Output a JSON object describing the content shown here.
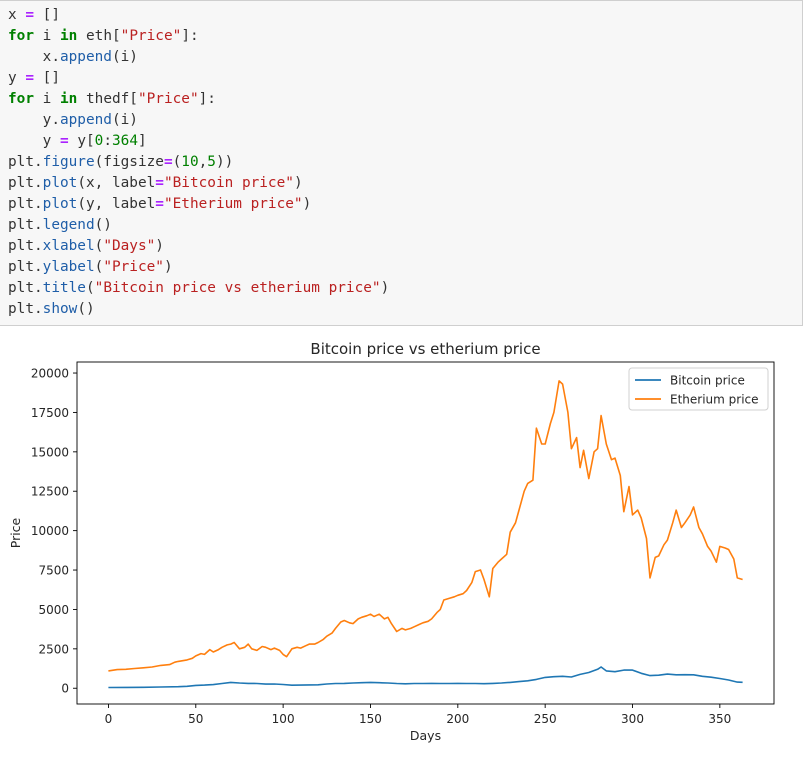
{
  "code_cell": {
    "lines": [
      [
        {
          "t": "x ",
          "c": ""
        },
        {
          "t": "=",
          "c": "op"
        },
        {
          "t": " []",
          "c": ""
        }
      ],
      [
        {
          "t": "for",
          "c": "kw"
        },
        {
          "t": " i ",
          "c": ""
        },
        {
          "t": "in",
          "c": "kw"
        },
        {
          "t": " eth[",
          "c": ""
        },
        {
          "t": "\"Price\"",
          "c": "str"
        },
        {
          "t": "]:",
          "c": ""
        }
      ],
      [
        {
          "t": "    x.",
          "c": ""
        },
        {
          "t": "append",
          "c": "fn"
        },
        {
          "t": "(i)",
          "c": ""
        }
      ],
      [
        {
          "t": "y ",
          "c": ""
        },
        {
          "t": "=",
          "c": "op"
        },
        {
          "t": " []",
          "c": ""
        }
      ],
      [
        {
          "t": "for",
          "c": "kw"
        },
        {
          "t": " i ",
          "c": ""
        },
        {
          "t": "in",
          "c": "kw"
        },
        {
          "t": " thedf[",
          "c": ""
        },
        {
          "t": "\"Price\"",
          "c": "str"
        },
        {
          "t": "]:",
          "c": ""
        }
      ],
      [
        {
          "t": "    y.",
          "c": ""
        },
        {
          "t": "append",
          "c": "fn"
        },
        {
          "t": "(i)",
          "c": ""
        }
      ],
      [
        {
          "t": "    y ",
          "c": ""
        },
        {
          "t": "=",
          "c": "op"
        },
        {
          "t": " y[",
          "c": ""
        },
        {
          "t": "0",
          "c": "num"
        },
        {
          "t": ":",
          "c": ""
        },
        {
          "t": "364",
          "c": "num"
        },
        {
          "t": "]",
          "c": ""
        }
      ],
      [
        {
          "t": "plt.",
          "c": ""
        },
        {
          "t": "figure",
          "c": "fn"
        },
        {
          "t": "(figsize",
          "c": ""
        },
        {
          "t": "=",
          "c": "op"
        },
        {
          "t": "(",
          "c": ""
        },
        {
          "t": "10",
          "c": "num"
        },
        {
          "t": ",",
          "c": ""
        },
        {
          "t": "5",
          "c": "num"
        },
        {
          "t": "))",
          "c": ""
        }
      ],
      [
        {
          "t": "plt.",
          "c": ""
        },
        {
          "t": "plot",
          "c": "fn"
        },
        {
          "t": "(x, label",
          "c": ""
        },
        {
          "t": "=",
          "c": "op"
        },
        {
          "t": "\"Bitcoin price\"",
          "c": "str"
        },
        {
          "t": ")",
          "c": ""
        }
      ],
      [
        {
          "t": "plt.",
          "c": ""
        },
        {
          "t": "plot",
          "c": "fn"
        },
        {
          "t": "(y, label",
          "c": ""
        },
        {
          "t": "=",
          "c": "op"
        },
        {
          "t": "\"Etherium price\"",
          "c": "str"
        },
        {
          "t": ")",
          "c": ""
        }
      ],
      [
        {
          "t": "plt.",
          "c": ""
        },
        {
          "t": "legend",
          "c": "fn"
        },
        {
          "t": "()",
          "c": ""
        }
      ],
      [
        {
          "t": "plt.",
          "c": ""
        },
        {
          "t": "xlabel",
          "c": "fn"
        },
        {
          "t": "(",
          "c": ""
        },
        {
          "t": "\"Days\"",
          "c": "str"
        },
        {
          "t": ")",
          "c": ""
        }
      ],
      [
        {
          "t": "plt.",
          "c": ""
        },
        {
          "t": "ylabel",
          "c": "fn"
        },
        {
          "t": "(",
          "c": ""
        },
        {
          "t": "\"Price\"",
          "c": "str"
        },
        {
          "t": ")",
          "c": ""
        }
      ],
      [
        {
          "t": "plt.",
          "c": ""
        },
        {
          "t": "title",
          "c": "fn"
        },
        {
          "t": "(",
          "c": ""
        },
        {
          "t": "\"Bitcoin price vs etherium price\"",
          "c": "str"
        },
        {
          "t": ")",
          "c": ""
        }
      ],
      [
        {
          "t": "plt.",
          "c": ""
        },
        {
          "t": "show",
          "c": "fn"
        },
        {
          "t": "()",
          "c": ""
        }
      ]
    ]
  },
  "chart_data": {
    "type": "line",
    "title": "Bitcoin price vs etherium price",
    "xlabel": "Days",
    "ylabel": "Price",
    "xlim": [
      -18,
      381
    ],
    "ylim": [
      -1000,
      20700
    ],
    "xticks": [
      0,
      50,
      100,
      150,
      200,
      250,
      300,
      350
    ],
    "yticks": [
      0,
      2500,
      5000,
      7500,
      10000,
      12500,
      15000,
      17500,
      20000
    ],
    "legend_position": "top-right",
    "grid": false,
    "series": [
      {
        "name": "Bitcoin price",
        "color": "#1f77b4",
        "points": [
          [
            0,
            50
          ],
          [
            10,
            55
          ],
          [
            20,
            60
          ],
          [
            30,
            80
          ],
          [
            40,
            95
          ],
          [
            45,
            120
          ],
          [
            50,
            180
          ],
          [
            55,
            200
          ],
          [
            60,
            230
          ],
          [
            65,
            300
          ],
          [
            70,
            370
          ],
          [
            75,
            330
          ],
          [
            80,
            310
          ],
          [
            85,
            300
          ],
          [
            90,
            260
          ],
          [
            95,
            270
          ],
          [
            100,
            240
          ],
          [
            105,
            190
          ],
          [
            110,
            200
          ],
          [
            115,
            210
          ],
          [
            120,
            220
          ],
          [
            125,
            270
          ],
          [
            130,
            300
          ],
          [
            135,
            310
          ],
          [
            140,
            330
          ],
          [
            145,
            350
          ],
          [
            150,
            370
          ],
          [
            155,
            350
          ],
          [
            160,
            330
          ],
          [
            165,
            300
          ],
          [
            170,
            280
          ],
          [
            175,
            300
          ],
          [
            180,
            300
          ],
          [
            185,
            310
          ],
          [
            190,
            300
          ],
          [
            195,
            300
          ],
          [
            200,
            310
          ],
          [
            205,
            300
          ],
          [
            210,
            300
          ],
          [
            215,
            290
          ],
          [
            220,
            310
          ],
          [
            225,
            330
          ],
          [
            230,
            370
          ],
          [
            235,
            420
          ],
          [
            240,
            470
          ],
          [
            245,
            560
          ],
          [
            250,
            690
          ],
          [
            255,
            730
          ],
          [
            260,
            760
          ],
          [
            265,
            710
          ],
          [
            270,
            880
          ],
          [
            275,
            1000
          ],
          [
            280,
            1200
          ],
          [
            282,
            1350
          ],
          [
            285,
            1100
          ],
          [
            290,
            1050
          ],
          [
            295,
            1150
          ],
          [
            300,
            1150
          ],
          [
            305,
            950
          ],
          [
            310,
            800
          ],
          [
            315,
            830
          ],
          [
            320,
            900
          ],
          [
            325,
            850
          ],
          [
            330,
            860
          ],
          [
            335,
            850
          ],
          [
            340,
            760
          ],
          [
            345,
            700
          ],
          [
            350,
            620
          ],
          [
            355,
            520
          ],
          [
            360,
            390
          ],
          [
            363,
            380
          ]
        ]
      },
      {
        "name": "Etherium price",
        "color": "#ff7f0e",
        "points": [
          [
            0,
            1100
          ],
          [
            5,
            1180
          ],
          [
            10,
            1200
          ],
          [
            15,
            1250
          ],
          [
            20,
            1300
          ],
          [
            25,
            1350
          ],
          [
            30,
            1450
          ],
          [
            35,
            1500
          ],
          [
            38,
            1650
          ],
          [
            40,
            1700
          ],
          [
            45,
            1800
          ],
          [
            48,
            1900
          ],
          [
            50,
            2050
          ],
          [
            53,
            2200
          ],
          [
            55,
            2150
          ],
          [
            58,
            2450
          ],
          [
            60,
            2300
          ],
          [
            63,
            2450
          ],
          [
            65,
            2600
          ],
          [
            68,
            2750
          ],
          [
            70,
            2800
          ],
          [
            72,
            2900
          ],
          [
            75,
            2500
          ],
          [
            78,
            2600
          ],
          [
            80,
            2800
          ],
          [
            82,
            2500
          ],
          [
            85,
            2400
          ],
          [
            88,
            2650
          ],
          [
            90,
            2600
          ],
          [
            93,
            2450
          ],
          [
            95,
            2550
          ],
          [
            98,
            2400
          ],
          [
            100,
            2150
          ],
          [
            102,
            2000
          ],
          [
            105,
            2500
          ],
          [
            108,
            2600
          ],
          [
            110,
            2550
          ],
          [
            113,
            2700
          ],
          [
            115,
            2800
          ],
          [
            118,
            2800
          ],
          [
            120,
            2900
          ],
          [
            123,
            3100
          ],
          [
            125,
            3300
          ],
          [
            128,
            3500
          ],
          [
            130,
            3800
          ],
          [
            133,
            4200
          ],
          [
            135,
            4300
          ],
          [
            138,
            4150
          ],
          [
            140,
            4100
          ],
          [
            143,
            4400
          ],
          [
            145,
            4500
          ],
          [
            148,
            4600
          ],
          [
            150,
            4700
          ],
          [
            152,
            4550
          ],
          [
            155,
            4700
          ],
          [
            158,
            4400
          ],
          [
            160,
            4500
          ],
          [
            162,
            4100
          ],
          [
            165,
            3600
          ],
          [
            168,
            3800
          ],
          [
            170,
            3700
          ],
          [
            173,
            3800
          ],
          [
            175,
            3900
          ],
          [
            178,
            4050
          ],
          [
            180,
            4150
          ],
          [
            183,
            4250
          ],
          [
            185,
            4400
          ],
          [
            188,
            4800
          ],
          [
            190,
            5000
          ],
          [
            192,
            5600
          ],
          [
            195,
            5700
          ],
          [
            198,
            5800
          ],
          [
            200,
            5900
          ],
          [
            203,
            6000
          ],
          [
            205,
            6200
          ],
          [
            208,
            6700
          ],
          [
            210,
            7400
          ],
          [
            213,
            7500
          ],
          [
            215,
            6900
          ],
          [
            218,
            5800
          ],
          [
            220,
            7600
          ],
          [
            223,
            8000
          ],
          [
            225,
            8200
          ],
          [
            228,
            8500
          ],
          [
            230,
            9900
          ],
          [
            233,
            10500
          ],
          [
            235,
            11300
          ],
          [
            238,
            12500
          ],
          [
            240,
            13000
          ],
          [
            243,
            13200
          ],
          [
            245,
            16500
          ],
          [
            248,
            15500
          ],
          [
            250,
            15500
          ],
          [
            253,
            16800
          ],
          [
            255,
            17500
          ],
          [
            258,
            19500
          ],
          [
            260,
            19300
          ],
          [
            263,
            17500
          ],
          [
            265,
            15200
          ],
          [
            268,
            15900
          ],
          [
            270,
            14000
          ],
          [
            272,
            15100
          ],
          [
            275,
            13300
          ],
          [
            278,
            15000
          ],
          [
            280,
            15200
          ],
          [
            282,
            17300
          ],
          [
            285,
            15500
          ],
          [
            288,
            14500
          ],
          [
            290,
            14600
          ],
          [
            293,
            13500
          ],
          [
            295,
            11200
          ],
          [
            298,
            12800
          ],
          [
            300,
            11000
          ],
          [
            303,
            11300
          ],
          [
            305,
            10800
          ],
          [
            308,
            9500
          ],
          [
            310,
            7000
          ],
          [
            313,
            8300
          ],
          [
            315,
            8400
          ],
          [
            318,
            9100
          ],
          [
            320,
            9400
          ],
          [
            323,
            10500
          ],
          [
            325,
            11300
          ],
          [
            328,
            10200
          ],
          [
            330,
            10500
          ],
          [
            333,
            11000
          ],
          [
            335,
            11500
          ],
          [
            338,
            10200
          ],
          [
            340,
            9800
          ],
          [
            343,
            9000
          ],
          [
            345,
            8700
          ],
          [
            348,
            8000
          ],
          [
            350,
            9000
          ],
          [
            353,
            8900
          ],
          [
            355,
            8800
          ],
          [
            358,
            8200
          ],
          [
            360,
            7000
          ],
          [
            363,
            6900
          ]
        ]
      }
    ]
  }
}
